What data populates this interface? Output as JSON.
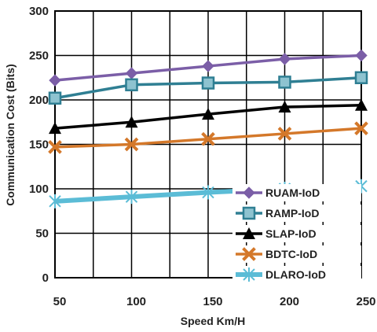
{
  "chart_data": {
    "type": "line",
    "title": "",
    "xlabel": "Speed Km/H",
    "ylabel": "Communication Cost (Bits)",
    "x": [
      50,
      100,
      150,
      200,
      250
    ],
    "xlim": [
      50,
      250
    ],
    "ylim": [
      0,
      300
    ],
    "yticks": [
      0,
      50,
      100,
      150,
      200,
      250,
      300
    ],
    "grid": true,
    "legend_position": "bottom-right",
    "series": [
      {
        "name": "RUAM-IoD",
        "values": [
          222,
          230,
          238,
          246,
          250
        ],
        "color": "#7b5ea7",
        "marker": "diamond"
      },
      {
        "name": "RAMP-IoD",
        "values": [
          202,
          217,
          219,
          220,
          225
        ],
        "color": "#2f7f93",
        "marker": "square"
      },
      {
        "name": "SLAP-IoD",
        "values": [
          168,
          175,
          184,
          192,
          194
        ],
        "color": "#000000",
        "marker": "triangle"
      },
      {
        "name": "BDTC-IoD",
        "values": [
          147,
          150,
          156,
          162,
          168
        ],
        "color": "#d4782a",
        "marker": "x"
      },
      {
        "name": "DLARO-IoD",
        "values": [
          86,
          91,
          96,
          100,
          103
        ],
        "color": "#5bbcd6",
        "marker": "star"
      }
    ]
  }
}
